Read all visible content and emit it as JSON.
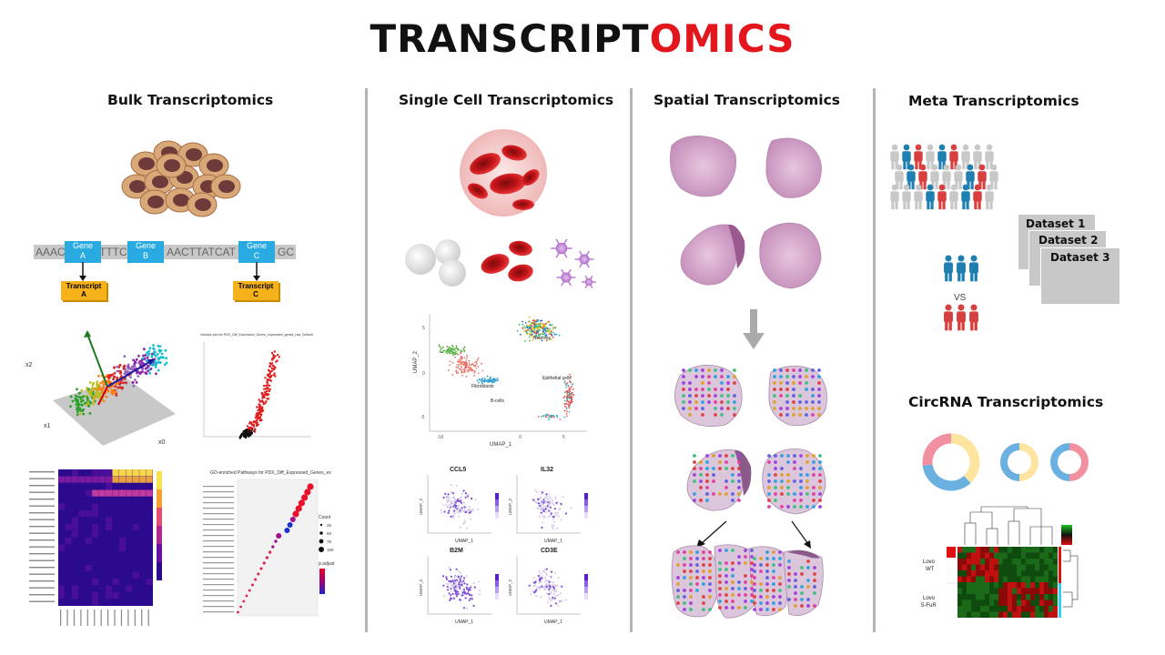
{
  "title": {
    "prefix": "TRANSCRIPT",
    "suffix": "OMICS"
  },
  "colors": {
    "accent": "#e3161e",
    "divider": "#b5b5b5",
    "gene_box": "#29abe2",
    "transcript_box": "#f5b21b"
  },
  "columns": {
    "bulk": "Bulk Transcriptomics",
    "single_cell": "Single Cell Transcriptomics",
    "spatial": "Spatial Transcriptomics",
    "meta": "Meta Transcriptomics",
    "circrna": "CircRNA Transcriptomics"
  },
  "bulk": {
    "genes": [
      "Gene\nA",
      "Gene\nB",
      "Gene\nC"
    ],
    "gene_a": "Gene",
    "gene_a_sub": "A",
    "gene_b": "Gene",
    "gene_b_sub": "B",
    "gene_c": "Gene",
    "gene_c_sub": "C",
    "seq_left": "AAAC",
    "seq_mid": "TTTC",
    "seq_right": "AACTTATCAT",
    "seq_end": "GC",
    "transcript_a": "Transcript",
    "transcript_a_sub": "A",
    "transcript_c": "Transcript",
    "transcript_c_sub": "C",
    "pca_axes": {
      "x1": "x1",
      "x2": "x2",
      "x0": "x0"
    },
    "volcano_title": "Volcano plot for PDX_Diff_Expressed_Genes_expressed_genes_raw_Default",
    "go_title": "GO-enriched Pathways for PDX_Diff_Expressed_Genes_ex",
    "go_legend_count": "Count",
    "go_legend_counts": [
      "25",
      "50",
      "75",
      "100"
    ],
    "go_legend_padj": "p.adjust"
  },
  "single_cell": {
    "umap_y": "UMAP_2",
    "umap_x": "UMAP_1",
    "clusters": [
      "Neurons",
      "Epithelial cells",
      "Fibroblasts",
      "B-cells"
    ],
    "features": [
      "CCL5",
      "IL32",
      "B2M",
      "CD3E"
    ],
    "y_ticks": [
      "5",
      "0",
      "-5"
    ],
    "x_ticks": [
      "-10",
      "0",
      "5"
    ]
  },
  "meta": {
    "datasets": [
      "Dataset 1",
      "Dataset 2",
      "Dataset 3"
    ],
    "vs": "VS"
  },
  "circrna": {
    "heatmap_rows": [
      "Lovo\nWT",
      "Lovo\n5-FuR"
    ],
    "row1a": "Lovo",
    "row1b": "WT",
    "row2a": "Lovo",
    "row2b": "5-FuR"
  }
}
